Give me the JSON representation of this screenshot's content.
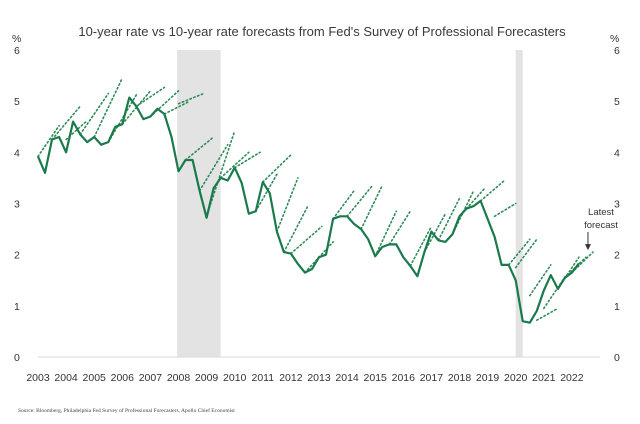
{
  "chart_data": {
    "type": "line",
    "title": "10-year rate vs 10-year rate forecasts from Fed's Survey of Professional Forecasters",
    "ylabel_left": "%",
    "ylabel_right": "%",
    "ylim": [
      0,
      6
    ],
    "xlim": [
      2003,
      2023
    ],
    "yticks": [
      "0",
      "1",
      "2",
      "3",
      "4",
      "5",
      "6"
    ],
    "xticks": [
      "2003",
      "2004",
      "2005",
      "2006",
      "2007",
      "2008",
      "2009",
      "2010",
      "2011",
      "2012",
      "2013",
      "2014",
      "2015",
      "2016",
      "2017",
      "2018",
      "2019",
      "2020",
      "2021",
      "2022"
    ],
    "recessions": [
      {
        "start": 2007.95,
        "end": 2009.5
      },
      {
        "start": 2020.0,
        "end": 2020.25
      }
    ],
    "source": "Source: Bloomberg, Philadelphia Fed Survey of Professional Forecasters, Apollo Chief Economist",
    "annotation": {
      "label_line1": "Latest",
      "label_line2": "forecast",
      "x": 2022.75,
      "y": 2.05
    },
    "colors": {
      "actual": "#1a7a4c",
      "forecast": "#2e8b57",
      "recession": "#e3e3e3"
    },
    "series": [
      {
        "name": "10-year rate",
        "style": "solid",
        "x": [
          2003.0,
          2003.25,
          2003.5,
          2003.75,
          2004.0,
          2004.25,
          2004.5,
          2004.75,
          2005.0,
          2005.25,
          2005.5,
          2005.75,
          2006.0,
          2006.25,
          2006.5,
          2006.75,
          2007.0,
          2007.25,
          2007.5,
          2007.75,
          2008.0,
          2008.25,
          2008.5,
          2008.75,
          2009.0,
          2009.25,
          2009.5,
          2009.75,
          2010.0,
          2010.25,
          2010.5,
          2010.75,
          2011.0,
          2011.25,
          2011.5,
          2011.75,
          2012.0,
          2012.25,
          2012.5,
          2012.75,
          2013.0,
          2013.25,
          2013.5,
          2013.75,
          2014.0,
          2014.25,
          2014.5,
          2014.75,
          2015.0,
          2015.25,
          2015.5,
          2015.75,
          2016.0,
          2016.25,
          2016.5,
          2016.75,
          2017.0,
          2017.25,
          2017.5,
          2017.75,
          2018.0,
          2018.25,
          2018.5,
          2018.75,
          2019.0,
          2019.25,
          2019.5,
          2019.75,
          2020.0,
          2020.25,
          2020.5,
          2020.75,
          2021.0,
          2021.25,
          2021.5,
          2021.75,
          2022.0,
          2022.25
        ],
        "values": [
          3.92,
          3.6,
          4.25,
          4.3,
          4.0,
          4.6,
          4.35,
          4.2,
          4.3,
          4.15,
          4.2,
          4.5,
          4.55,
          5.07,
          4.9,
          4.65,
          4.7,
          4.85,
          4.75,
          4.3,
          3.63,
          3.85,
          3.85,
          3.25,
          2.72,
          3.3,
          3.5,
          3.45,
          3.7,
          3.4,
          2.8,
          2.85,
          3.42,
          3.2,
          2.45,
          2.05,
          2.02,
          1.82,
          1.65,
          1.72,
          1.95,
          2.0,
          2.7,
          2.75,
          2.75,
          2.6,
          2.5,
          2.3,
          1.97,
          2.15,
          2.2,
          2.2,
          1.95,
          1.78,
          1.58,
          2.05,
          2.45,
          2.28,
          2.25,
          2.4,
          2.75,
          2.9,
          2.95,
          3.05,
          2.7,
          2.35,
          1.8,
          1.8,
          1.5,
          0.7,
          0.67,
          0.9,
          1.3,
          1.6,
          1.33,
          1.55,
          1.65,
          1.83
        ]
      },
      {
        "name": "forecast",
        "style": "dotted",
        "x": [
          2003.0,
          2003.75
        ],
        "values": [
          3.92,
          4.52
        ]
      },
      {
        "name": "forecast",
        "style": "dotted",
        "x": [
          2003.5,
          2004.5
        ],
        "values": [
          4.25,
          4.9
        ]
      },
      {
        "name": "forecast",
        "style": "dotted",
        "x": [
          2004.0,
          2004.75
        ],
        "values": [
          4.25,
          4.62
        ]
      },
      {
        "name": "forecast",
        "style": "dotted",
        "x": [
          2004.5,
          2005.5
        ],
        "values": [
          4.35,
          5.15
        ]
      },
      {
        "name": "forecast",
        "style": "dotted",
        "x": [
          2005.0,
          2006.0
        ],
        "values": [
          4.3,
          5.45
        ]
      },
      {
        "name": "forecast",
        "style": "dotted",
        "x": [
          2005.5,
          2006.5
        ],
        "values": [
          4.2,
          5.12
        ]
      },
      {
        "name": "forecast",
        "style": "dotted",
        "x": [
          2006.0,
          2007.0
        ],
        "values": [
          4.55,
          5.2
        ]
      },
      {
        "name": "forecast",
        "style": "dotted",
        "x": [
          2006.5,
          2007.5
        ],
        "values": [
          4.9,
          5.27
        ]
      },
      {
        "name": "forecast",
        "style": "dotted",
        "x": [
          2007.0,
          2008.0
        ],
        "values": [
          4.7,
          5.2
        ]
      },
      {
        "name": "forecast",
        "style": "dotted",
        "x": [
          2007.5,
          2008.4
        ],
        "values": [
          4.75,
          5.0
        ]
      },
      {
        "name": "forecast",
        "style": "dotted",
        "x": [
          2008.0,
          2008.9
        ],
        "values": [
          4.95,
          5.15
        ]
      },
      {
        "name": "forecast",
        "style": "dotted",
        "x": [
          2008.25,
          2009.25
        ],
        "values": [
          3.85,
          4.3
        ]
      },
      {
        "name": "forecast",
        "style": "dotted",
        "x": [
          2008.75,
          2009.75
        ],
        "values": [
          3.25,
          4.15
        ]
      },
      {
        "name": "forecast",
        "style": "dotted",
        "x": [
          2009.0,
          2010.0
        ],
        "values": [
          2.75,
          4.42
        ]
      },
      {
        "name": "forecast",
        "style": "dotted",
        "x": [
          2009.5,
          2010.5
        ],
        "values": [
          3.5,
          4.0
        ]
      },
      {
        "name": "forecast",
        "style": "dotted",
        "x": [
          2010.0,
          2010.9
        ],
        "values": [
          3.7,
          4.0
        ]
      },
      {
        "name": "forecast",
        "style": "dotted",
        "x": [
          2010.75,
          2011.5
        ],
        "values": [
          2.85,
          3.57
        ]
      },
      {
        "name": "forecast",
        "style": "dotted",
        "x": [
          2011.0,
          2012.0
        ],
        "values": [
          3.42,
          3.95
        ]
      },
      {
        "name": "forecast",
        "style": "dotted",
        "x": [
          2011.5,
          2012.25
        ],
        "values": [
          2.45,
          3.5
        ]
      },
      {
        "name": "forecast",
        "style": "dotted",
        "x": [
          2011.75,
          2012.6
        ],
        "values": [
          2.05,
          2.95
        ]
      },
      {
        "name": "forecast",
        "style": "dotted",
        "x": [
          2012.0,
          2013.1
        ],
        "values": [
          2.02,
          2.55
        ]
      },
      {
        "name": "forecast",
        "style": "dotted",
        "x": [
          2012.5,
          2013.5
        ],
        "values": [
          1.65,
          2.25
        ]
      },
      {
        "name": "forecast",
        "style": "dotted",
        "x": [
          2013.5,
          2014.25
        ],
        "values": [
          2.7,
          3.25
        ]
      },
      {
        "name": "forecast",
        "style": "dotted",
        "x": [
          2014.0,
          2014.9
        ],
        "values": [
          2.75,
          3.35
        ]
      },
      {
        "name": "forecast",
        "style": "dotted",
        "x": [
          2014.5,
          2015.25
        ],
        "values": [
          2.5,
          3.35
        ]
      },
      {
        "name": "forecast",
        "style": "dotted",
        "x": [
          2015.0,
          2015.75
        ],
        "values": [
          1.97,
          2.85
        ]
      },
      {
        "name": "forecast",
        "style": "dotted",
        "x": [
          2015.5,
          2016.25
        ],
        "values": [
          2.2,
          2.85
        ]
      },
      {
        "name": "forecast",
        "style": "dotted",
        "x": [
          2016.25,
          2017.0
        ],
        "values": [
          1.78,
          2.55
        ]
      },
      {
        "name": "forecast",
        "style": "dotted",
        "x": [
          2016.75,
          2017.5
        ],
        "values": [
          2.05,
          2.8
        ]
      },
      {
        "name": "forecast",
        "style": "dotted",
        "x": [
          2017.25,
          2018.0
        ],
        "values": [
          2.28,
          3.1
        ]
      },
      {
        "name": "forecast",
        "style": "dotted",
        "x": [
          2017.75,
          2018.5
        ],
        "values": [
          2.4,
          3.25
        ]
      },
      {
        "name": "forecast",
        "style": "dotted",
        "x": [
          2018.25,
          2018.9
        ],
        "values": [
          2.9,
          3.3
        ]
      },
      {
        "name": "forecast",
        "style": "dotted",
        "x": [
          2018.75,
          2019.6
        ],
        "values": [
          3.05,
          3.45
        ]
      },
      {
        "name": "forecast",
        "style": "dotted",
        "x": [
          2019.25,
          2020.0
        ],
        "values": [
          2.75,
          3.0
        ]
      },
      {
        "name": "forecast",
        "style": "dotted",
        "x": [
          2019.75,
          2020.5
        ],
        "values": [
          1.8,
          2.3
        ]
      },
      {
        "name": "forecast",
        "style": "dotted",
        "x": [
          2020.0,
          2020.75
        ],
        "values": [
          1.75,
          2.3
        ]
      },
      {
        "name": "forecast",
        "style": "dotted",
        "x": [
          2020.5,
          2021.25
        ],
        "values": [
          1.2,
          1.8
        ]
      },
      {
        "name": "forecast",
        "style": "dotted",
        "x": [
          2020.75,
          2021.5
        ],
        "values": [
          0.72,
          0.95
        ]
      },
      {
        "name": "forecast",
        "style": "dotted",
        "x": [
          2021.0,
          2021.8
        ],
        "values": [
          0.95,
          1.6
        ]
      },
      {
        "name": "forecast",
        "style": "dotted",
        "x": [
          2021.5,
          2022.25
        ],
        "values": [
          1.33,
          1.95
        ]
      },
      {
        "name": "forecast",
        "style": "dotted",
        "x": [
          2021.75,
          2022.5
        ],
        "values": [
          1.55,
          1.95
        ]
      },
      {
        "name": "forecast",
        "style": "dotted",
        "x": [
          2022.0,
          2022.75
        ],
        "values": [
          1.65,
          2.05
        ]
      }
    ]
  }
}
